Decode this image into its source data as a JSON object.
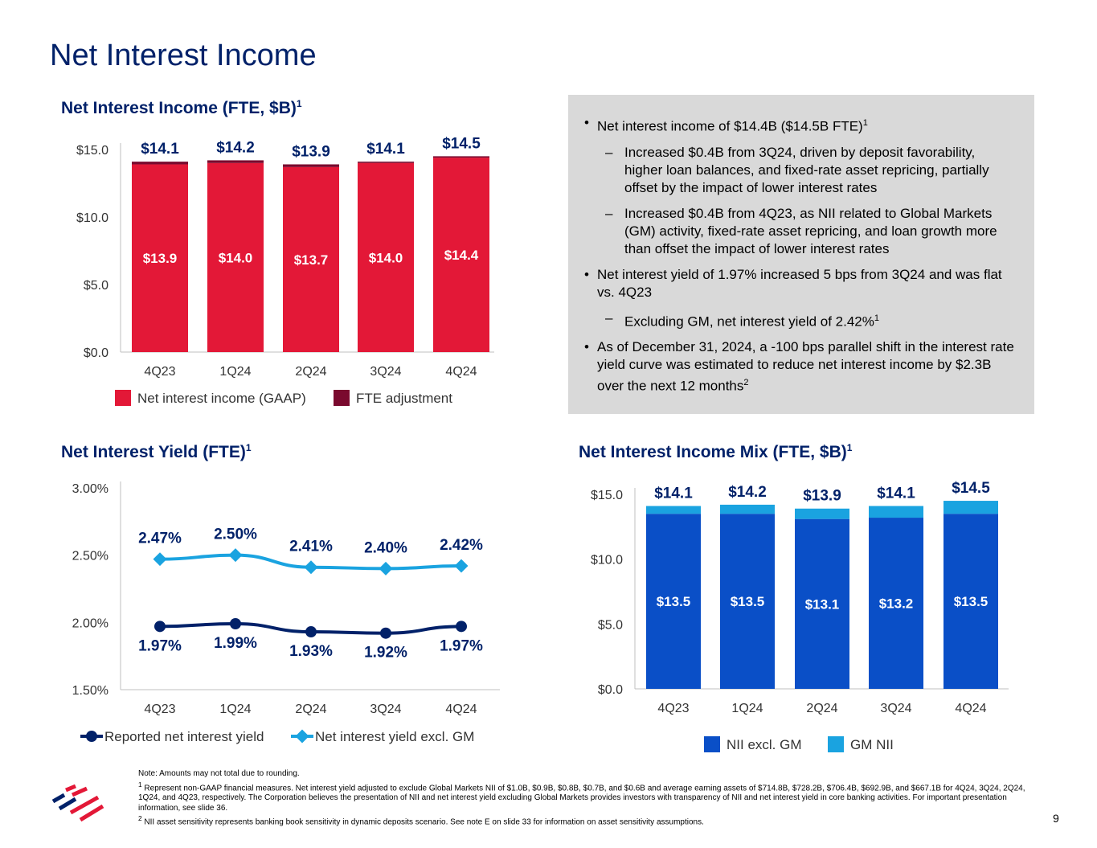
{
  "page": {
    "title": "Net Interest Income",
    "page_number": "9"
  },
  "commentary": {
    "bullets": [
      {
        "level": 1,
        "text": "Net interest income of $14.4B ($14.5B FTE)",
        "sup": "1"
      },
      {
        "level": 2,
        "text": "Increased $0.4B from 3Q24, driven by deposit favorability, higher loan balances, and fixed-rate asset repricing, partially offset by the impact of lower interest rates",
        "sup": ""
      },
      {
        "level": 2,
        "text": "Increased $0.4B from 4Q23, as NII related to Global Markets (GM) activity, fixed-rate asset repricing, and loan growth more than offset the impact of lower interest rates",
        "sup": ""
      },
      {
        "level": 1,
        "text": "Net interest yield of 1.97% increased 5 bps from 3Q24 and was flat vs. 4Q23",
        "sup": ""
      },
      {
        "level": 2,
        "text": "Excluding GM, net interest yield of 2.42%",
        "sup": "1"
      },
      {
        "level": 1,
        "text": "As of December 31, 2024, a -100 bps parallel shift in the interest rate yield curve was estimated to reduce net interest income by $2.3B over the next 12 months",
        "sup": "2"
      }
    ]
  },
  "footnotes": {
    "note": "Note: Amounts may not total due to rounding.",
    "f1_mark": "1",
    "f1": "Represent non-GAAP financial measures. Net interest yield adjusted to exclude Global Markets NII of $1.0B, $0.9B, $0.8B, $0.7B, and $0.6B and average earning assets of $714.8B, $728.2B, $706.4B, $692.9B, and $667.1B for 4Q24, 3Q24, 2Q24, 1Q24, and 4Q23, respectively. The Corporation believes the presentation of NII and net interest yield excluding Global Markets provides investors with transparency of NII and net interest yield in core banking activities. For important presentation information, see slide 36.",
    "f2_mark": "2",
    "f2": "NII asset sensitivity represents banking book sensitivity in dynamic deposits scenario. See note E on slide 33 for information on asset sensitivity assumptions."
  },
  "colors": {
    "red": "#E31837",
    "dark_red": "#7A0A2E",
    "navy": "#012169",
    "blue": "#0A4FC7",
    "light_blue": "#1AA3E0"
  },
  "chart_data": [
    {
      "type": "bar",
      "stacked": true,
      "title": "Net Interest Income (FTE, $B)",
      "title_sup": "1",
      "categories": [
        "4Q23",
        "1Q24",
        "2Q24",
        "3Q24",
        "4Q24"
      ],
      "series": [
        {
          "name": "Net interest income (GAAP)",
          "values": [
            13.9,
            14.0,
            13.7,
            14.0,
            14.4
          ],
          "labels": [
            "$13.9",
            "$14.0",
            "$13.7",
            "$14.0",
            "$14.4"
          ],
          "color": "#E31837"
        },
        {
          "name": "FTE adjustment",
          "values": [
            0.2,
            0.2,
            0.2,
            0.1,
            0.1
          ],
          "color": "#7A0A2E"
        }
      ],
      "totals": [
        "$14.1",
        "$14.2",
        "$13.9",
        "$14.1",
        "$14.5"
      ],
      "yticks": [
        "$0.0",
        "$5.0",
        "$10.0",
        "$15.0"
      ],
      "ytick_values": [
        0,
        5,
        10,
        15
      ],
      "ylim": [
        0,
        15
      ],
      "legend": "bottom"
    },
    {
      "type": "line",
      "title": "Net Interest Yield (FTE)",
      "title_sup": "1",
      "categories": [
        "4Q23",
        "1Q24",
        "2Q24",
        "3Q24",
        "4Q24"
      ],
      "series": [
        {
          "name": "Reported net interest yield",
          "values": [
            1.97,
            1.99,
            1.93,
            1.92,
            1.97
          ],
          "labels": [
            "1.97%",
            "1.99%",
            "1.93%",
            "1.92%",
            "1.97%"
          ],
          "color": "#012169",
          "marker": "circle"
        },
        {
          "name": "Net interest yield excl. GM",
          "values": [
            2.47,
            2.5,
            2.41,
            2.4,
            2.42
          ],
          "labels": [
            "2.47%",
            "2.50%",
            "2.41%",
            "2.40%",
            "2.42%"
          ],
          "color": "#1AA3E0",
          "marker": "diamond"
        }
      ],
      "yticks": [
        "1.50%",
        "2.00%",
        "2.50%",
        "3.00%"
      ],
      "ytick_values": [
        1.5,
        2.0,
        2.5,
        3.0
      ],
      "ylim": [
        1.5,
        3.0
      ],
      "legend": "bottom"
    },
    {
      "type": "bar",
      "stacked": true,
      "title": "Net Interest Income Mix (FTE, $B)",
      "title_sup": "1",
      "categories": [
        "4Q23",
        "1Q24",
        "2Q24",
        "3Q24",
        "4Q24"
      ],
      "series": [
        {
          "name": "NII excl. GM",
          "values": [
            13.5,
            13.5,
            13.1,
            13.2,
            13.5
          ],
          "labels": [
            "$13.5",
            "$13.5",
            "$13.1",
            "$13.2",
            "$13.5"
          ],
          "color": "#0A4FC7"
        },
        {
          "name": "GM NII",
          "values": [
            0.6,
            0.7,
            0.8,
            0.9,
            1.0
          ],
          "color": "#1AA3E0"
        }
      ],
      "totals": [
        "$14.1",
        "$14.2",
        "$13.9",
        "$14.1",
        "$14.5"
      ],
      "yticks": [
        "$0.0",
        "$5.0",
        "$10.0",
        "$15.0"
      ],
      "ytick_values": [
        0,
        5,
        10,
        15
      ],
      "ylim": [
        0,
        15
      ],
      "legend": "bottom"
    }
  ]
}
